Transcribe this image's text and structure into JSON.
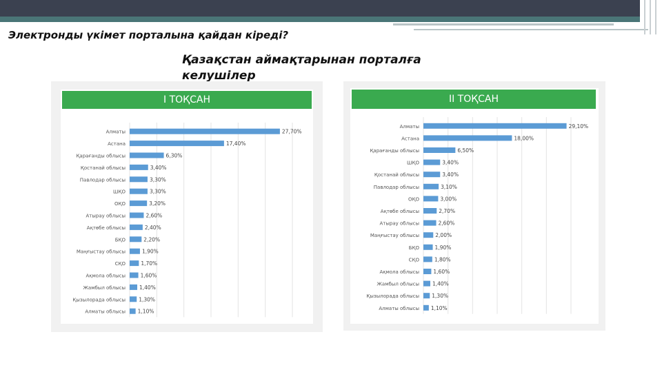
{
  "header": {
    "title": "Электронды үкімет порталына қайдан кіреді?",
    "subtitle": "Қазақстан аймақтарынан порталға келушілер"
  },
  "colors": {
    "bar": "#5b9bd5",
    "header_bg": "#3aaa4f",
    "banner_dark": "#3b4150",
    "banner_teal": "#4a7577"
  },
  "chart_data": [
    {
      "type": "bar",
      "orientation": "horizontal",
      "title": "I ТОҚСАН",
      "categories": [
        "Алматы",
        "Астана",
        "Қарағанды облысы",
        "Қостанай облысы",
        "Павлодар облысы",
        "ШҚО",
        "ОҚО",
        "Атырау облысы",
        "Ақтөбе облысы",
        "БҚО",
        "Маңғыстау облысы",
        "СҚО",
        "Ақмола облысы",
        "Жамбыл облысы",
        "Қызылорада облысы",
        "Алматы облысы"
      ],
      "values": [
        27.7,
        17.4,
        6.3,
        3.4,
        3.3,
        3.3,
        3.2,
        2.6,
        2.4,
        2.2,
        1.9,
        1.7,
        1.6,
        1.4,
        1.3,
        1.1
      ],
      "labels": [
        "27,70%",
        "17,40%",
        "6,30%",
        "3,40%",
        "3,30%",
        "3,30%",
        "3,20%",
        "2,60%",
        "2,40%",
        "2,20%",
        "1,90%",
        "1,70%",
        "1,60%",
        "1,40%",
        "1,30%",
        "1,10%"
      ],
      "xlim": [
        0,
        30
      ],
      "grid": true
    },
    {
      "type": "bar",
      "orientation": "horizontal",
      "title": "II ТОҚСАН",
      "categories": [
        "Алматы",
        "Астана",
        "Қарағанды облысы",
        "ШҚО",
        "Қостанай облысы",
        "Павлодар облысы",
        "ОҚО",
        "Ақтөбе облысы",
        "Атырау облысы",
        "Маңғыстау облысы",
        "БҚО",
        "СҚО",
        "Ақмола облысы",
        "Жамбыл облысы",
        "Қызылорада облысы",
        "Алматы облысы"
      ],
      "values": [
        29.1,
        18.0,
        6.5,
        3.4,
        3.4,
        3.1,
        3.0,
        2.7,
        2.6,
        2.0,
        1.9,
        1.8,
        1.6,
        1.4,
        1.3,
        1.1
      ],
      "labels": [
        "29,10%",
        "18,00%",
        "6,50%",
        "3,40%",
        "3,40%",
        "3,10%",
        "3,00%",
        "2,70%",
        "2,60%",
        "2,00%",
        "1,90%",
        "1,80%",
        "1,60%",
        "1,40%",
        "1,30%",
        "1,10%"
      ],
      "xlim": [
        0,
        30
      ],
      "grid": true
    }
  ]
}
